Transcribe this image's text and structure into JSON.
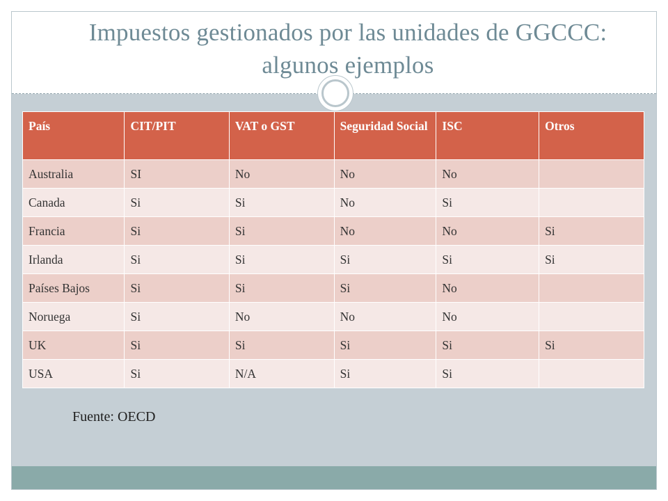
{
  "title": {
    "line1": "Impuestos gestionados por las unidades de GGCCC:",
    "line2": "algunos ejemplos"
  },
  "table": {
    "headers": [
      "País",
      "CIT/PIT",
      "VAT o GST",
      "Seguridad Social",
      "ISC",
      "Otros"
    ],
    "rows": [
      [
        "Australia",
        "SI",
        "No",
        "No",
        "No",
        ""
      ],
      [
        "Canada",
        "Si",
        "Si",
        "No",
        "Si",
        ""
      ],
      [
        "Francia",
        "Si",
        "Si",
        "No",
        "No",
        "Si"
      ],
      [
        "Irlanda",
        "Si",
        "Si",
        "Si",
        "Si",
        "Si"
      ],
      [
        "Países Bajos",
        "Si",
        "Si",
        "Si",
        "No",
        ""
      ],
      [
        "Noruega",
        "Si",
        "No",
        "No",
        "No",
        ""
      ],
      [
        "UK",
        "Si",
        "Si",
        "Si",
        "Si",
        "Si"
      ],
      [
        "USA",
        "Si",
        "N/A",
        "Si",
        "Si",
        ""
      ]
    ]
  },
  "source": "Fuente: OECD",
  "colors": {
    "header_bg": "#d3624a",
    "row_dark": "#eccfc9",
    "row_light": "#f5e8e6",
    "content_bg": "#c5cfd5",
    "footer_band": "#8aaaa9",
    "title_text": "#6e8a95"
  }
}
